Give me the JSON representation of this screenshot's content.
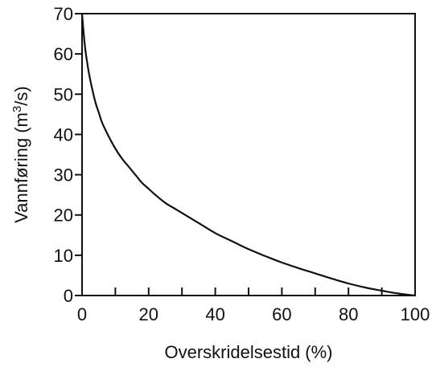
{
  "chart_data": {
    "type": "line",
    "title": "",
    "xlabel": "Overskridelsestid (%)",
    "ylabel_parts": {
      "before": "Vannføring (m",
      "sup": "3",
      "after": "/s)"
    },
    "xlim": [
      0,
      100
    ],
    "ylim": [
      0,
      70
    ],
    "x_ticks": [
      0,
      20,
      40,
      60,
      80,
      100
    ],
    "y_ticks": [
      0,
      10,
      20,
      30,
      40,
      50,
      60,
      70
    ],
    "x_minor_ticks": [
      10,
      30,
      50,
      70,
      90
    ],
    "grid": false,
    "legend": "none",
    "series": [
      {
        "x": [
          0,
          0.5,
          1,
          2,
          3,
          4,
          5,
          6,
          8,
          10,
          12,
          14,
          16,
          18,
          20,
          22,
          25,
          28,
          30,
          35,
          40,
          45,
          50,
          55,
          60,
          65,
          70,
          75,
          80,
          85,
          90,
          95,
          100
        ],
        "y": [
          70,
          65,
          61,
          55.5,
          51.5,
          48,
          45.5,
          43,
          39.5,
          36.5,
          34,
          32,
          30,
          28,
          26.5,
          25,
          23,
          21.5,
          20.5,
          18,
          15.5,
          13.5,
          11.5,
          9.8,
          8.2,
          6.8,
          5.5,
          4.2,
          3.0,
          2.0,
          1.2,
          0.5,
          0
        ]
      }
    ]
  }
}
